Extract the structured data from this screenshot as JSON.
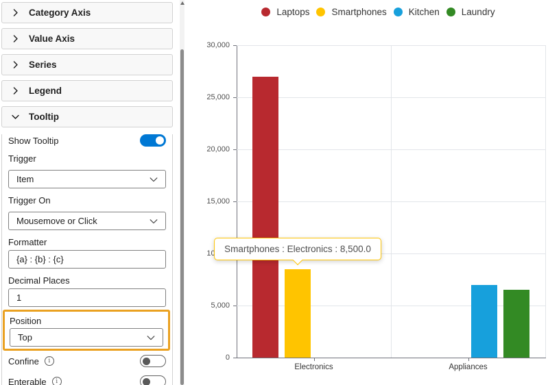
{
  "colors": {
    "toggle_on": "#0078D4",
    "highlight": "#EAA121",
    "axis": "#6E7079",
    "grid": "#E2E5E9"
  },
  "panel": {
    "sections": [
      {
        "label": "Category Axis",
        "expanded": false
      },
      {
        "label": "Value Axis",
        "expanded": false
      },
      {
        "label": "Series",
        "expanded": false
      },
      {
        "label": "Legend",
        "expanded": false
      },
      {
        "label": "Tooltip",
        "expanded": true
      }
    ],
    "tooltip_settings": {
      "show_tooltip": {
        "label": "Show Tooltip",
        "enabled": true
      },
      "trigger": {
        "label": "Trigger",
        "value": "Item"
      },
      "trigger_on": {
        "label": "Trigger On",
        "value": "Mousemove or Click"
      },
      "formatter": {
        "label": "Formatter",
        "value": "{a} : {b} : {c}"
      },
      "decimal_places": {
        "label": "Decimal Places",
        "value": "1"
      },
      "position": {
        "label": "Position",
        "value": "Top",
        "highlighted": true
      },
      "confine": {
        "label": "Confine",
        "enabled": false
      },
      "enterable": {
        "label": "Enterable",
        "enabled": false
      }
    }
  },
  "chart_data": {
    "type": "bar",
    "categories": [
      "Electronics",
      "Appliances"
    ],
    "series": [
      {
        "name": "Laptops",
        "color": "#B8292F",
        "values": [
          27000,
          null
        ]
      },
      {
        "name": "Smartphones",
        "color": "#FFC400",
        "values": [
          8500,
          null
        ]
      },
      {
        "name": "Kitchen",
        "color": "#17A0DC",
        "values": [
          null,
          7000
        ]
      },
      {
        "name": "Laundry",
        "color": "#338A24",
        "values": [
          null,
          6500
        ]
      }
    ],
    "title": "",
    "xlabel": "",
    "ylabel": "",
    "ylim": [
      0,
      30000
    ],
    "ytick_step": 5000,
    "ytick_labels": [
      "0",
      "5,000",
      "10,000",
      "15,000",
      "20,000",
      "25,000",
      "30,000"
    ],
    "grid": true,
    "legend_position": "top",
    "tooltip": {
      "text": "Smartphones : Electronics : 8,500.0",
      "target_series": "Smartphones",
      "target_category": "Electronics",
      "value": 8500
    }
  }
}
